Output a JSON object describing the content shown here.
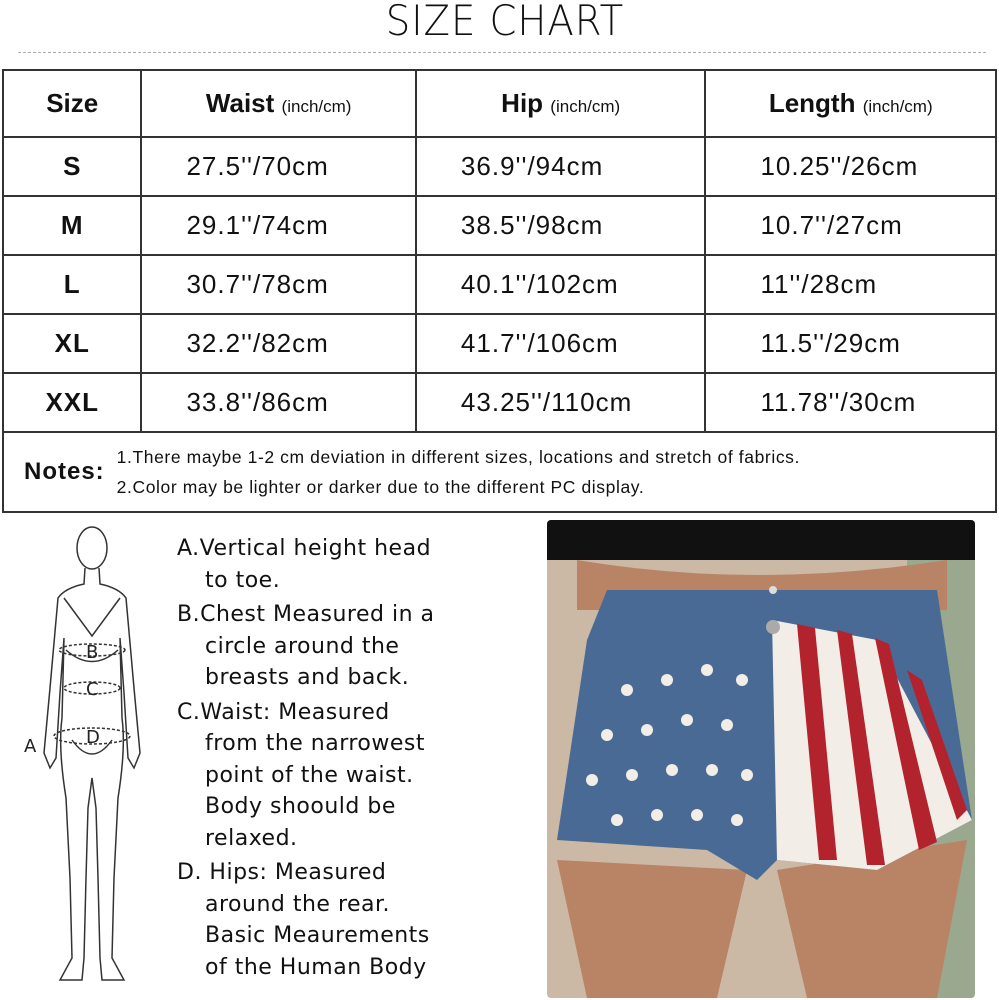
{
  "title": "SIZE CHART",
  "table": {
    "headers": [
      {
        "label": "Size",
        "unit": ""
      },
      {
        "label": "Waist",
        "unit": "(inch/cm)"
      },
      {
        "label": "Hip",
        "unit": "(inch/cm)"
      },
      {
        "label": "Length",
        "unit": "(inch/cm)"
      }
    ],
    "rows": [
      {
        "size": "S",
        "waist": "27.5''/70cm",
        "hip": "36.9''/94cm",
        "length": "10.25''/26cm"
      },
      {
        "size": "M",
        "waist": "29.1''/74cm",
        "hip": "38.5''/98cm",
        "length": "10.7''/27cm"
      },
      {
        "size": "L",
        "waist": "30.7''/78cm",
        "hip": "40.1''/102cm",
        "length": "11''/28cm"
      },
      {
        "size": "XL",
        "waist": "32.2''/82cm",
        "hip": "41.7''/106cm",
        "length": "11.5''/29cm"
      },
      {
        "size": "XXL",
        "waist": "33.8''/86cm",
        "hip": "43.25''/110cm",
        "length": "11.78''/30cm"
      }
    ],
    "notes_label": "Notes:",
    "notes": [
      "1.There maybe 1-2 cm deviation in different sizes, locations and stretch of fabrics.",
      "2.Color may be lighter or darker due to the different PC display."
    ]
  },
  "figure": {
    "labels": [
      "A",
      "B",
      "C",
      "D"
    ]
  },
  "legend": [
    {
      "first": "A.Vertical height head",
      "rest": [
        "to toe."
      ]
    },
    {
      "first": "B.Chest Measured in a",
      "rest": [
        "circle around the",
        "breasts and back."
      ]
    },
    {
      "first": "C.Waist: Measured",
      "rest": [
        "from the narrowest",
        "point of the waist.",
        "Body shoould be",
        "relaxed."
      ]
    },
    {
      "first": "D. Hips: Measured",
      "rest": [
        "around the rear.",
        "Basic Meaurements",
        "of the Human Body"
      ]
    }
  ],
  "colors": {
    "denim": "#4a6a96",
    "flag_red": "#b3232e",
    "flag_white": "#f2ede6",
    "skin": "#b98466"
  }
}
